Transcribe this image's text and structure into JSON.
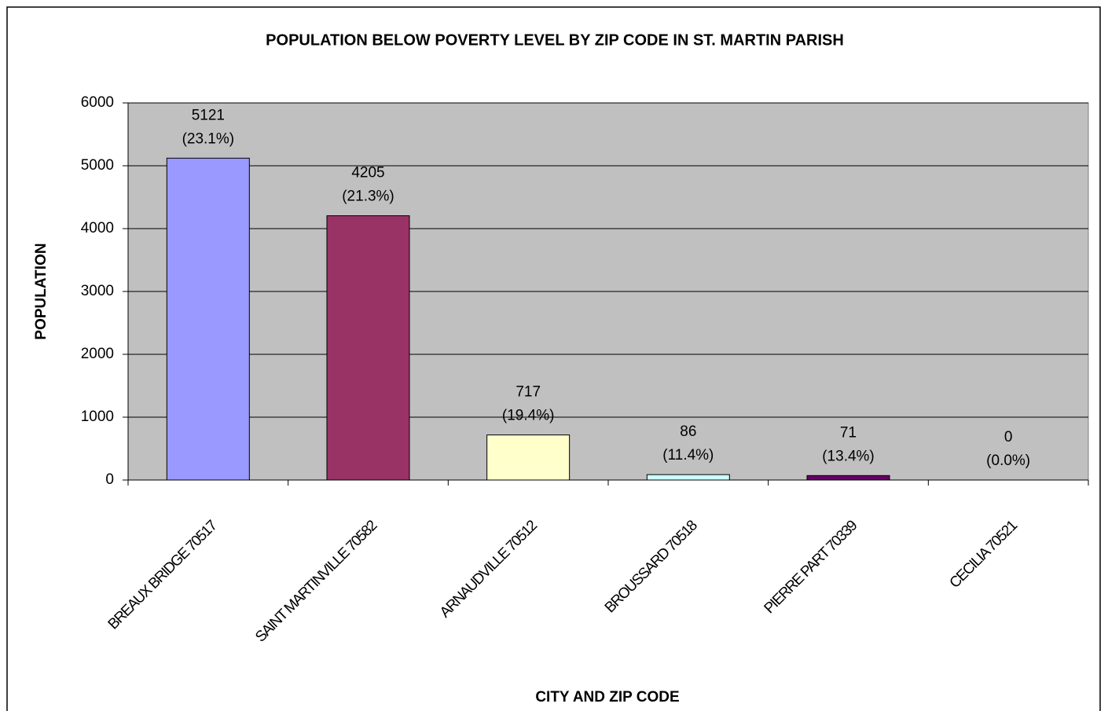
{
  "chart_data": {
    "type": "bar",
    "title": "POPULATION BELOW POVERTY LEVEL BY ZIP CODE IN ST. MARTIN PARISH",
    "x_label": "CITY AND ZIP CODE",
    "y_label": "POPULATION",
    "categories": [
      "BREAUX BRIDGE 70517",
      "SAINT MARTINVILLE 70582",
      "ARNAUDVILLE 70512",
      "BROUSSARD 70518",
      "PIERRE PART 70339",
      "CECILIA 70521"
    ],
    "values": [
      5121,
      4205,
      717,
      86,
      71,
      0
    ],
    "percents": [
      23.1,
      21.3,
      19.4,
      11.4,
      13.4,
      0.0
    ],
    "percent_labels": [
      "(23.1%)",
      "(21.3%)",
      "(19.4%)",
      "(11.4%)",
      "(13.4%)",
      "(0.0%)"
    ],
    "colors": [
      "#9999ff",
      "#993366",
      "#ffffcc",
      "#ccffff",
      "#660066",
      "#ff8080"
    ],
    "ylim": [
      0,
      6000
    ],
    "yticks": [
      0,
      1000,
      2000,
      3000,
      4000,
      5000,
      6000
    ],
    "grid": true,
    "plot_background": "#c0c0c0"
  }
}
